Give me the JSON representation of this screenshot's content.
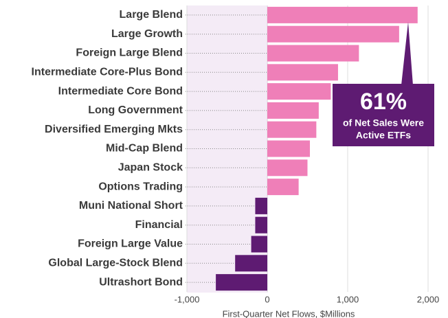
{
  "chart_data": {
    "type": "barh",
    "categories": [
      "Large Blend",
      "Large Growth",
      "Foreign Large Blend",
      "Intermediate Core-Plus Bond",
      "Intermediate Core Bond",
      "Long Government",
      "Diversified Emerging Mkts",
      "Mid-Cap Blend",
      "Japan Stock",
      "Options Trading",
      "Muni National Short",
      "Financial",
      "Foreign Large Value",
      "Global Large-Stock Blend",
      "Ultrashort Bond"
    ],
    "values": [
      1870,
      1640,
      1140,
      880,
      790,
      640,
      610,
      530,
      500,
      390,
      -150,
      -150,
      -200,
      -400,
      -640
    ],
    "color_positive": "#ef7fb8",
    "color_negative": "#5e1b72",
    "xlim": [
      -1000,
      2000
    ],
    "xticks": [
      {
        "value": -1000,
        "label": "-1,000"
      },
      0,
      {
        "value": 1000,
        "label": "1,000"
      },
      {
        "value": 2000,
        "label": "2,000"
      }
    ],
    "xlabel": "First-Quarter Net Flows, $Millions",
    "grid": true,
    "annotation": {
      "headline": "61%",
      "lines": [
        "of Net Sales Were",
        "Active ETFs"
      ]
    }
  }
}
